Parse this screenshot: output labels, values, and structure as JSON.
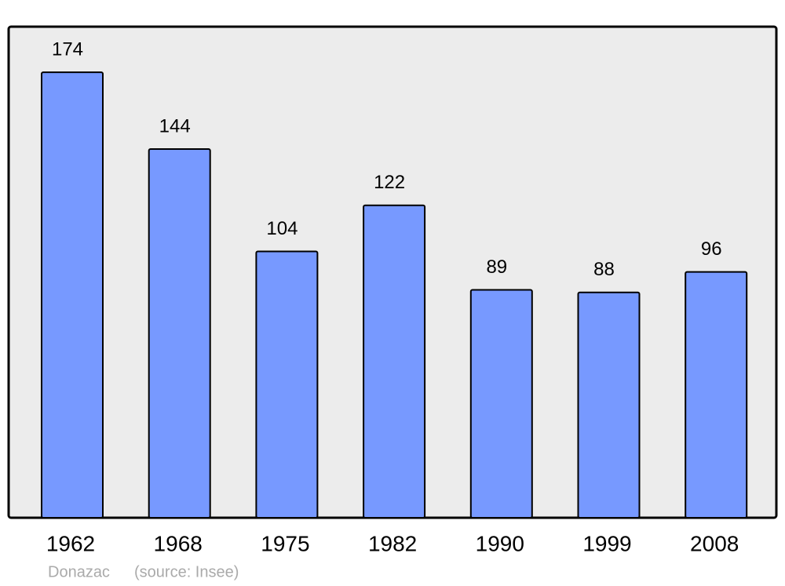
{
  "chart_data": {
    "type": "bar",
    "title": "Donazac",
    "note": "(source: Insee)",
    "categories": [
      "1962",
      "1968",
      "1975",
      "1982",
      "1990",
      "1999",
      "2008"
    ],
    "values": [
      174,
      144,
      104,
      122,
      89,
      88,
      96
    ],
    "color": "#7799ff"
  }
}
